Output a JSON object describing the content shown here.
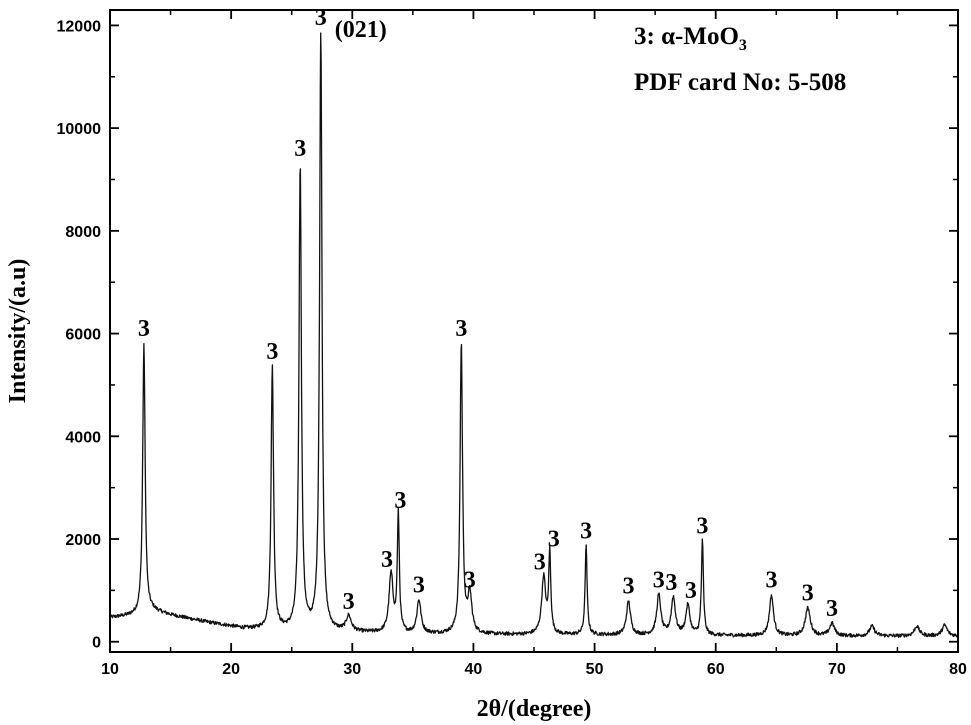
{
  "chart_data": {
    "type": "line",
    "title": "",
    "xlabel": "2θ/(degree)",
    "ylabel": "Intensity/(a.u)",
    "xlim": [
      10,
      80
    ],
    "ylim": [
      -200,
      12300
    ],
    "xticks": [
      10,
      20,
      30,
      40,
      50,
      60,
      70,
      80
    ],
    "yticks": [
      0,
      2000,
      4000,
      6000,
      8000,
      10000,
      12000
    ],
    "grid": false,
    "legend": {
      "placement": "top-right",
      "line1_prefix": "3: α-MoO",
      "line1_subscript": "3",
      "line2": "PDF card No: 5-508"
    },
    "peaks": [
      {
        "x": 12.8,
        "y": 5800,
        "label": "3"
      },
      {
        "x": 23.4,
        "y": 5350,
        "label": "3"
      },
      {
        "x": 25.7,
        "y": 9300,
        "label": "3"
      },
      {
        "x": 27.4,
        "y": 11850,
        "label": "3",
        "annotation": "(021)"
      },
      {
        "x": 29.7,
        "y": 480,
        "label": "3"
      },
      {
        "x": 33.2,
        "y": 1300,
        "label": "3"
      },
      {
        "x": 33.8,
        "y": 2450,
        "label": "3"
      },
      {
        "x": 35.5,
        "y": 800,
        "label": "3"
      },
      {
        "x": 39.0,
        "y": 5800,
        "label": "3"
      },
      {
        "x": 39.7,
        "y": 900,
        "label": "3"
      },
      {
        "x": 45.8,
        "y": 1250,
        "label": "3"
      },
      {
        "x": 46.3,
        "y": 1700,
        "label": "3"
      },
      {
        "x": 49.3,
        "y": 1850,
        "label": "3"
      },
      {
        "x": 52.8,
        "y": 780,
        "label": "3"
      },
      {
        "x": 55.3,
        "y": 900,
        "label": "3"
      },
      {
        "x": 56.5,
        "y": 850,
        "label": "3"
      },
      {
        "x": 57.7,
        "y": 700,
        "label": "3"
      },
      {
        "x": 58.9,
        "y": 1950,
        "label": "3"
      },
      {
        "x": 64.6,
        "y": 900,
        "label": "3"
      },
      {
        "x": 67.6,
        "y": 650,
        "label": "3"
      },
      {
        "x": 69.6,
        "y": 350,
        "label": "3"
      },
      {
        "x": 72.9,
        "y": 300
      },
      {
        "x": 76.6,
        "y": 300
      },
      {
        "x": 78.9,
        "y": 320
      }
    ],
    "baseline": {
      "x": [
        10,
        12.3,
        13.5,
        15,
        18,
        21,
        23,
        26,
        30,
        35,
        38,
        42,
        50,
        60,
        70,
        80
      ],
      "y": [
        470,
        520,
        600,
        520,
        380,
        260,
        230,
        220,
        180,
        150,
        150,
        140,
        130,
        120,
        110,
        110
      ]
    }
  }
}
